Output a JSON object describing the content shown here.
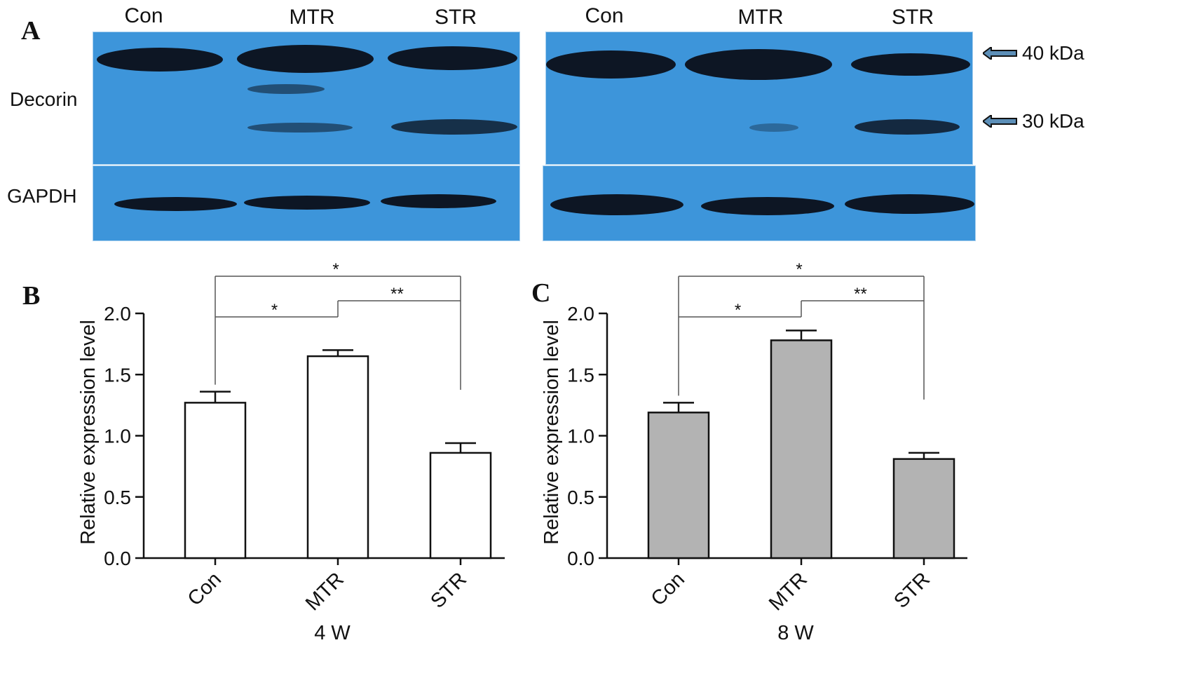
{
  "panel_a": {
    "letter": "A",
    "lanes_left": [
      "Con",
      "MTR",
      "STR"
    ],
    "lanes_right": [
      "Con",
      "MTR",
      "STR"
    ],
    "row_decorin": "Decorin",
    "row_gapdh": "GAPDH",
    "marker_40": "40 kDa",
    "marker_30": "30 kDa"
  },
  "chart_data": [
    {
      "panel": "B",
      "type": "bar",
      "categories": [
        "Con",
        "MTR",
        "STR"
      ],
      "values": [
        1.27,
        1.65,
        0.86
      ],
      "errors": [
        0.09,
        0.05,
        0.08
      ],
      "bar_color": "#ffffff",
      "xlabel": "4 W",
      "ylabel": "Relative expression level",
      "ylim": [
        0,
        2.0
      ],
      "yticks": [
        "0.0",
        "0.5",
        "1.0",
        "1.5",
        "2.0"
      ],
      "significance": [
        {
          "from": "Con",
          "to": "MTR",
          "label": "*"
        },
        {
          "from": "MTR",
          "to": "STR",
          "label": "**"
        },
        {
          "from": "Con",
          "to": "STR",
          "label": "*"
        }
      ]
    },
    {
      "panel": "C",
      "type": "bar",
      "categories": [
        "Con",
        "MTR",
        "STR"
      ],
      "values": [
        1.19,
        1.78,
        0.81
      ],
      "errors": [
        0.08,
        0.08,
        0.05
      ],
      "bar_color": "#b3b3b3",
      "xlabel": "8 W",
      "ylabel": "Relative expression level",
      "ylim": [
        0,
        2.0
      ],
      "yticks": [
        "0.0",
        "0.5",
        "1.0",
        "1.5",
        "2.0"
      ],
      "significance": [
        {
          "from": "Con",
          "to": "MTR",
          "label": "*"
        },
        {
          "from": "MTR",
          "to": "STR",
          "label": "**"
        },
        {
          "from": "Con",
          "to": "STR",
          "label": "*"
        }
      ]
    }
  ]
}
